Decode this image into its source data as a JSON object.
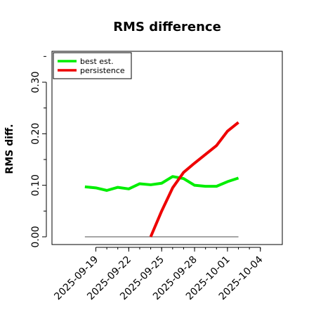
{
  "chart_data": {
    "type": "line",
    "title": "RMS difference",
    "xlabel": "",
    "ylabel": "RMS diff.",
    "xlim": [
      "2025-09-15",
      "2025-10-06"
    ],
    "ylim": [
      -0.015,
      0.36
    ],
    "x_tick_labels": [
      "2025-09-19",
      "2025-09-22",
      "2025-09-25",
      "2025-09-28",
      "2025-10-01",
      "2025-10-04"
    ],
    "x_ticks": [
      "2025-09-19",
      "2025-09-22",
      "2025-09-25",
      "2025-09-28",
      "2025-10-01",
      "2025-10-04"
    ],
    "y_ticks": [
      0.0,
      0.1,
      0.2,
      0.3
    ],
    "y_tick_labels": [
      "0.00",
      "0.10",
      "0.20",
      "0.30"
    ],
    "y_minor_ticks": [
      0.05,
      0.15,
      0.25,
      0.35
    ],
    "grid": false,
    "legend_position": "top-left",
    "series": [
      {
        "name": "best est.",
        "color": "#00ee00",
        "x": [
          "2025-09-18",
          "2025-09-19",
          "2025-09-20",
          "2025-09-21",
          "2025-09-22",
          "2025-09-23",
          "2025-09-24",
          "2025-09-25",
          "2025-09-26",
          "2025-09-27",
          "2025-09-28",
          "2025-09-29",
          "2025-09-30",
          "2025-10-01",
          "2025-10-02"
        ],
        "values": [
          0.097,
          0.095,
          0.09,
          0.096,
          0.093,
          0.103,
          0.101,
          0.104,
          0.117,
          0.113,
          0.1,
          0.098,
          0.098,
          0.107,
          0.114
        ]
      },
      {
        "name": "persistence",
        "color": "#ee0000",
        "x": [
          "2025-09-24",
          "2025-09-25",
          "2025-09-26",
          "2025-09-27",
          "2025-09-28",
          "2025-09-29",
          "2025-09-30",
          "2025-10-01",
          "2025-10-02"
        ],
        "values": [
          0.0,
          0.05,
          0.095,
          0.125,
          0.143,
          0.16,
          0.177,
          0.205,
          0.222
        ]
      }
    ],
    "reference_line": {
      "color": "#888888",
      "x": [
        "2025-09-18",
        "2025-10-02"
      ],
      "values": [
        0.0,
        0.0
      ]
    }
  }
}
